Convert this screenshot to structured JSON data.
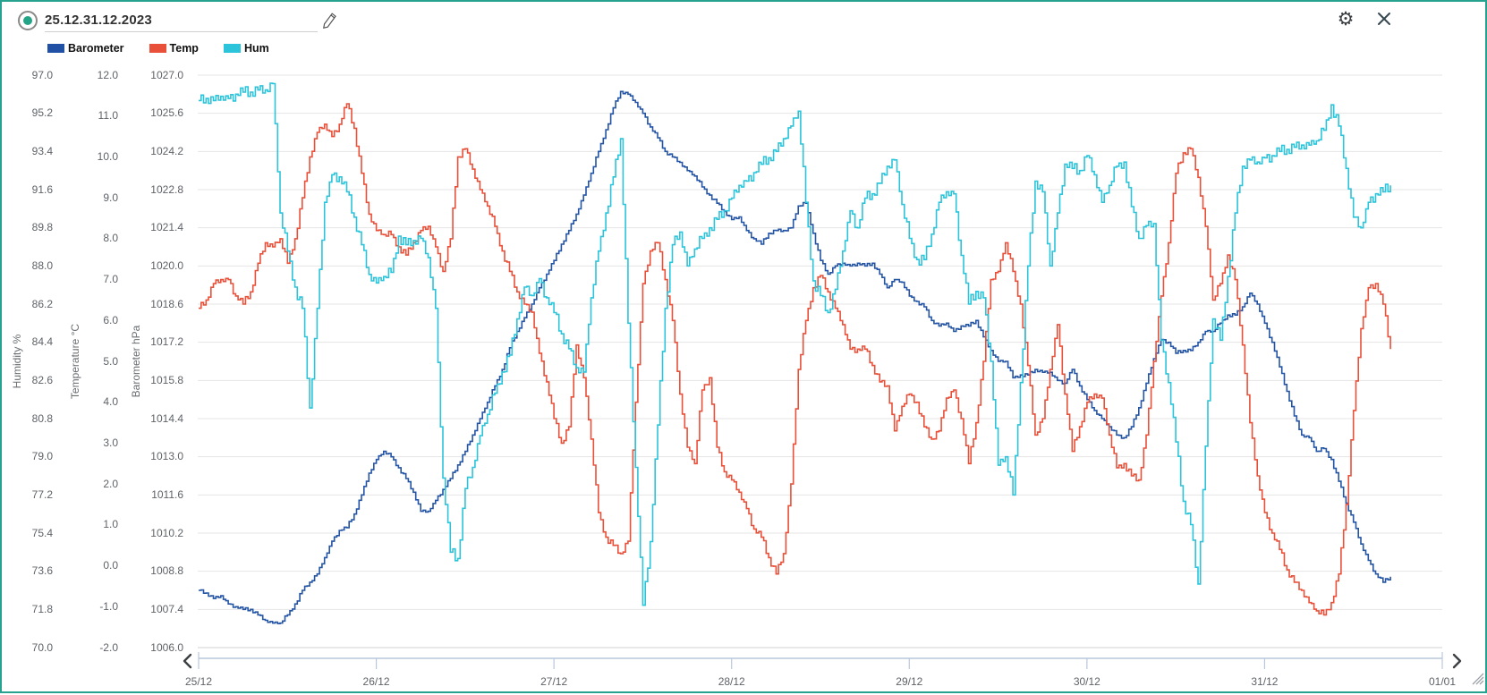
{
  "window": {
    "border_color": "#26a28e"
  },
  "header": {
    "title": "25.12.31.12.2023",
    "record_indicator_color": "#24a486",
    "edit_icon": "pencil-icon",
    "settings_icon": "gear-icon",
    "close_icon": "close-icon",
    "gear_glyph": "⚙"
  },
  "legend": [
    {
      "label": "Barometer",
      "color": "#2151a5"
    },
    {
      "label": "Temp",
      "color": "#e8503a"
    },
    {
      "label": "Hum",
      "color": "#2bc4da"
    }
  ],
  "chart_data": {
    "type": "line",
    "grid": "horizontal-only",
    "x_start": "25/12 00:00",
    "x_step_hours": 1,
    "x_tick_labels": [
      "25/12",
      "26/12",
      "27/12",
      "28/12",
      "29/12",
      "30/12",
      "31/12",
      "01/01"
    ],
    "x_domain_hours": 168,
    "axes": [
      {
        "id": "hum",
        "label": "Humidity %",
        "range": [
          70,
          97
        ],
        "ticks": [
          "97.0",
          "95.2",
          "93.4",
          "91.6",
          "89.8",
          "88.0",
          "86.2",
          "84.4",
          "82.6",
          "80.8",
          "79.0",
          "77.2",
          "75.4",
          "73.6",
          "71.8",
          "70.0"
        ]
      },
      {
        "id": "temp",
        "label": "Temperature °C",
        "range": [
          -2,
          12
        ],
        "ticks": [
          "12.0",
          "11.0",
          "10.0",
          "9.0",
          "8.0",
          "7.0",
          "6.0",
          "5.0",
          "4.0",
          "3.0",
          "2.0",
          "1.0",
          "0.0",
          "-1.0",
          "-2.0"
        ]
      },
      {
        "id": "baro",
        "label": "Barometer hPa",
        "range": [
          1006,
          1027
        ],
        "ticks": [
          "1027.0",
          "1025.6",
          "1024.2",
          "1022.8",
          "1021.4",
          "1020.0",
          "1018.6",
          "1017.2",
          "1015.8",
          "1014.4",
          "1013.0",
          "1011.6",
          "1010.2",
          "1008.8",
          "1007.4",
          "1006.0"
        ]
      }
    ],
    "series": [
      {
        "name": "Barometer",
        "unit": "hPa",
        "axis": "baro",
        "color": "#2454a4",
        "values": [
          1008.1,
          1008.0,
          1007.8,
          1007.9,
          1007.6,
          1007.5,
          1007.4,
          1007.4,
          1007.2,
          1007.0,
          1006.9,
          1006.9,
          1007.2,
          1007.6,
          1008.1,
          1008.4,
          1008.7,
          1009.3,
          1009.9,
          1010.3,
          1010.4,
          1010.9,
          1011.6,
          1012.4,
          1012.9,
          1013.2,
          1013.0,
          1012.6,
          1012.2,
          1011.7,
          1011.0,
          1011.0,
          1011.4,
          1011.8,
          1012.2,
          1012.7,
          1013.2,
          1013.8,
          1014.4,
          1015.0,
          1015.6,
          1016.2,
          1017.0,
          1017.6,
          1018.1,
          1018.6,
          1019.2,
          1019.7,
          1020.2,
          1020.8,
          1021.3,
          1021.9,
          1022.6,
          1023.4,
          1024.2,
          1025.0,
          1025.8,
          1026.4,
          1026.3,
          1026.0,
          1025.6,
          1025.1,
          1024.7,
          1024.2,
          1024.0,
          1023.8,
          1023.5,
          1023.3,
          1022.9,
          1022.6,
          1022.3,
          1022.0,
          1021.7,
          1021.8,
          1021.3,
          1021.0,
          1020.8,
          1021.2,
          1021.3,
          1021.3,
          1021.4,
          1022.2,
          1022.3,
          1021.2,
          1020.2,
          1019.7,
          1020.0,
          1020.1,
          1020.0,
          1020.1,
          1020.0,
          1020.1,
          1019.7,
          1019.2,
          1019.5,
          1019.4,
          1018.9,
          1018.7,
          1018.5,
          1018.0,
          1017.8,
          1017.9,
          1017.6,
          1017.8,
          1017.8,
          1018.0,
          1017.4,
          1016.9,
          1016.5,
          1016.5,
          1015.9,
          1016.0,
          1016.0,
          1016.2,
          1016.1,
          1016.1,
          1015.8,
          1015.7,
          1016.2,
          1015.6,
          1015.1,
          1014.7,
          1014.4,
          1014.1,
          1013.8,
          1013.7,
          1014.1,
          1014.8,
          1015.7,
          1016.6,
          1017.3,
          1017.2,
          1016.8,
          1016.9,
          1016.9,
          1017.2,
          1017.6,
          1017.6,
          1017.9,
          1018.2,
          1018.2,
          1018.5,
          1019.0,
          1018.6,
          1017.9,
          1017.2,
          1016.3,
          1015.4,
          1014.5,
          1013.8,
          1013.7,
          1013.2,
          1013.3,
          1012.9,
          1012.1,
          1011.3,
          1010.6,
          1009.8,
          1009.2,
          1008.7,
          1008.4,
          1008.6
        ]
      },
      {
        "name": "Temp",
        "unit": "°C",
        "axis": "temp",
        "color": "#e8503a",
        "values": [
          6.3,
          6.5,
          6.9,
          7.0,
          7.0,
          6.6,
          6.4,
          6.7,
          7.4,
          7.9,
          7.8,
          8.0,
          7.4,
          8.0,
          9.0,
          10.0,
          10.6,
          10.8,
          10.5,
          10.8,
          11.3,
          10.7,
          9.6,
          8.6,
          8.2,
          8.1,
          8.1,
          7.8,
          7.6,
          7.9,
          8.2,
          8.3,
          7.8,
          7.2,
          8.0,
          10.0,
          10.2,
          9.7,
          9.2,
          8.8,
          8.3,
          7.7,
          7.2,
          6.7,
          6.4,
          6.2,
          5.2,
          4.5,
          3.6,
          3.0,
          3.4,
          5.4,
          4.6,
          3.1,
          1.3,
          0.7,
          0.5,
          0.3,
          0.6,
          4.0,
          6.9,
          7.7,
          7.9,
          7.0,
          6.0,
          4.2,
          2.9,
          2.5,
          4.3,
          4.6,
          2.9,
          2.3,
          2.1,
          1.8,
          1.4,
          0.9,
          0.7,
          0.2,
          -0.2,
          0.3,
          2.0,
          4.8,
          6.0,
          6.8,
          7.1,
          6.7,
          6.3,
          5.9,
          5.3,
          5.3,
          5.3,
          4.9,
          4.5,
          4.4,
          3.3,
          3.9,
          4.2,
          4.0,
          3.4,
          3.1,
          3.3,
          4.1,
          4.3,
          3.6,
          2.5,
          3.5,
          5.0,
          7.0,
          7.2,
          7.9,
          7.2,
          6.4,
          4.9,
          3.2,
          3.6,
          4.8,
          5.9,
          4.2,
          2.8,
          3.4,
          4.0,
          4.2,
          4.1,
          3.2,
          2.4,
          2.5,
          2.2,
          2.1,
          3.2,
          5.0,
          6.6,
          7.9,
          9.6,
          10.1,
          10.2,
          9.5,
          8.3,
          6.5,
          6.9,
          7.6,
          7.0,
          5.4,
          3.5,
          2.2,
          1.3,
          0.8,
          0.4,
          -0.1,
          -0.4,
          -0.6,
          -0.9,
          -1.1,
          -1.2,
          -0.9,
          -0.2,
          1.5,
          3.8,
          5.8,
          6.8,
          6.9,
          6.4,
          5.3
        ]
      },
      {
        "name": "Hum",
        "unit": "%",
        "axis": "hum",
        "color": "#2bc4da",
        "values": [
          95.8,
          95.9,
          95.8,
          96.0,
          95.9,
          96.1,
          96.2,
          96.2,
          96.3,
          96.3,
          96.6,
          90.5,
          88.7,
          87.0,
          86.0,
          81.3,
          86.0,
          91.0,
          92.3,
          92.2,
          91.5,
          90.3,
          89.0,
          87.6,
          87.2,
          87.5,
          87.7,
          89.4,
          89.0,
          89.2,
          89.3,
          88.4,
          86.0,
          78.0,
          74.5,
          74.2,
          77.5,
          78.5,
          80.0,
          81.0,
          82.0,
          83.0,
          83.8,
          85.5,
          87.0,
          86.6,
          87.4,
          86.5,
          85.8,
          84.8,
          84.1,
          83.2,
          83.0,
          86.5,
          88.7,
          90.5,
          92.2,
          94.0,
          85.3,
          78.5,
          72.0,
          75.0,
          80.5,
          86.0,
          89.0,
          89.6,
          88.0,
          88.8,
          89.3,
          89.8,
          90.2,
          90.6,
          91.2,
          91.8,
          92.0,
          92.4,
          92.8,
          93.1,
          93.4,
          94.0,
          94.6,
          95.3,
          91.0,
          87.3,
          86.6,
          85.8,
          86.9,
          88.7,
          90.6,
          89.8,
          91.2,
          91.4,
          91.9,
          92.7,
          93.0,
          90.9,
          89.3,
          88.3,
          88.3,
          89.5,
          91.0,
          91.5,
          91.4,
          88.5,
          86.2,
          86.8,
          86.5,
          83.5,
          78.6,
          79.0,
          77.2,
          82.5,
          88.0,
          92.0,
          91.5,
          88.0,
          90.5,
          92.8,
          92.6,
          92.5,
          93.2,
          92.3,
          91.0,
          91.8,
          92.7,
          92.9,
          90.8,
          89.3,
          89.9,
          90.0,
          84.5,
          82.5,
          79.7,
          76.9,
          75.8,
          73.0,
          79.5,
          85.5,
          84.5,
          87.5,
          90.5,
          92.7,
          93.0,
          92.9,
          93.1,
          93.2,
          93.4,
          93.5,
          93.6,
          93.7,
          93.7,
          93.9,
          94.4,
          95.6,
          94.6,
          92.6,
          90.3,
          89.8,
          91.0,
          91.4,
          91.5,
          91.8
        ]
      }
    ]
  },
  "scrollbar": {
    "prev_label": "previous period",
    "next_label": "next period",
    "color": "#b9c7dc"
  },
  "misc": {
    "grid_color": "#e4e4e4",
    "tick_text_color": "#5f6368"
  }
}
